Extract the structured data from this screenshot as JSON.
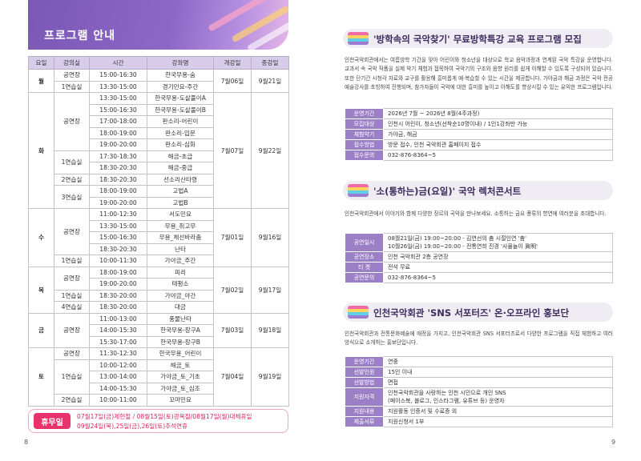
{
  "left": {
    "title": "프로그램 안내",
    "page_number": "8",
    "table": {
      "headers": [
        "요일",
        "강의실",
        "시간",
        "강좌명",
        "개강일",
        "종강일"
      ],
      "days": [
        {
          "day": "월",
          "start": "7월06일",
          "end": "9월21일",
          "rooms": [
            {
              "room": "공연장",
              "classes": [
                {
                  "time": "15:00-16:30",
                  "name": "한국무용-숨"
                }
              ]
            },
            {
              "room": "1연습실",
              "classes": [
                {
                  "time": "13:30-15:00",
                  "name": "경기민요-주간"
                }
              ]
            }
          ]
        },
        {
          "day": "화",
          "start": "7월07일",
          "end": "9월22일",
          "rooms": [
            {
              "room": "공연장",
              "classes": [
                {
                  "time": "13:30-15:00",
                  "name": "한국무용-도살풀이A"
                },
                {
                  "time": "15:00-16:30",
                  "name": "한국무용-도살풀이B"
                },
                {
                  "time": "17:00-18:00",
                  "name": "판소리-어린이"
                },
                {
                  "time": "18:00-19:00",
                  "name": "판소리-입문"
                },
                {
                  "time": "19:00-20:00",
                  "name": "판소리-심화"
                }
              ]
            },
            {
              "room": "1연습실",
              "classes": [
                {
                  "time": "17:30-18:30",
                  "name": "해금-초급"
                },
                {
                  "time": "18:30-20:30",
                  "name": "해금-중급"
                }
              ]
            },
            {
              "room": "2연습실",
              "classes": [
                {
                  "time": "18:30-20:30",
                  "name": "선소리산타령"
                }
              ]
            },
            {
              "room": "3연습실",
              "classes": [
                {
                  "time": "18:00-19:00",
                  "name": "고법A"
                },
                {
                  "time": "19:00-20:00",
                  "name": "고법B"
                }
              ]
            }
          ]
        },
        {
          "day": "수",
          "start": "7월01일",
          "end": "9월16일",
          "rooms": [
            {
              "room": "공연장",
              "classes": [
                {
                  "time": "11:00-12:30",
                  "name": "서도민요"
                },
                {
                  "time": "13:30-15:00",
                  "name": "무용_취고무"
                },
                {
                  "time": "15:00-16:30",
                  "name": "무용_체선바라춤"
                },
                {
                  "time": "18:30-20:30",
                  "name": "난타"
                }
              ]
            },
            {
              "room": "1연습실",
              "classes": [
                {
                  "time": "10:00-11:30",
                  "name": "가야금_주간"
                }
              ]
            }
          ]
        },
        {
          "day": "목",
          "start": "7월02일",
          "end": "9월17일",
          "rooms": [
            {
              "room": "공연장",
              "classes": [
                {
                  "time": "18:00-19:00",
                  "name": "피리"
                },
                {
                  "time": "19:00-20:00",
                  "name": "태평소"
                }
              ]
            },
            {
              "room": "1연습실",
              "classes": [
                {
                  "time": "18:30-20:00",
                  "name": "가야금_야간"
                }
              ]
            },
            {
              "room": "4연습실",
              "classes": [
                {
                  "time": "18:30-20:00",
                  "name": "대금"
                }
              ]
            }
          ]
        },
        {
          "day": "금",
          "start": "7월03일",
          "end": "9월18일",
          "rooms": [
            {
              "room": "공연장",
              "classes": [
                {
                  "time": "11:00-13:00",
                  "name": "풍물난타"
                },
                {
                  "time": "14:00-15:30",
                  "name": "한국무용-장구A"
                },
                {
                  "time": "15:30-17:00",
                  "name": "한국무용-장구B"
                }
              ]
            }
          ]
        },
        {
          "day": "토",
          "start": "7월04일",
          "end": "9월19일",
          "rooms": [
            {
              "room": "공연장",
              "classes": [
                {
                  "time": "11:30-12:30",
                  "name": "한국무용_어린이"
                }
              ]
            },
            {
              "room": "1연습실",
              "classes": [
                {
                  "time": "10:00-12:00",
                  "name": "해금_토"
                },
                {
                  "time": "13:00-14:00",
                  "name": "가야금_토_기초"
                },
                {
                  "time": "14:00-15:30",
                  "name": "가야금_토_심조"
                }
              ]
            },
            {
              "room": "2연습실",
              "classes": [
                {
                  "time": "10:00-11:00",
                  "name": "꼬마민요"
                }
              ]
            }
          ]
        }
      ]
    },
    "holiday": {
      "label": "휴무일",
      "lines": [
        "07월17일(금)제헌절 / 08월15일(토)광복절/08월17일(월)대체휴일",
        "09월24일(목),25일(금),26일(토)추석연휴"
      ]
    }
  },
  "right": {
    "page_number": "9",
    "sections": [
      {
        "title": "'방학속의 국악찾기' 무료방학특강 교육 프로그램 모집",
        "intro": "인천국악회관에서는 여름방학 기간을 맞아 어린이와 청소년을 대상으로 학교 음악과정과 연계된 국악 특강을 운영합니다. 교과서 속 국악 작품을 실제 악기 체험과 접목하여 국악기의 구조와 음향 원리를 쉽게 이해할 수 있도록 구성되어 있습니다. 또한 단기간 시청각 자료와 교구를 활용해 흥미롭게 예·복습할 수 있는 시간을 제공합니다. 가야금과 해금 과정은 국악 전공 예술강사를 초빙하여 진행되며, 참가자들이 국악에 대한 흥미를 높이고 이해도를 향상시킬 수 있는 유익한 프로그램입니다.",
        "rows": [
          {
            "label": "운영기간",
            "lines": [
              "2026년 7월 ~ 2026년 8월(4주과정)"
            ]
          },
          {
            "label": "모집대상",
            "lines": [
              "인천시 어린이, 청소년(선착순10명이내) / 1인1강좌만 가능"
            ]
          },
          {
            "label": "체험악기",
            "lines": [
              "가야금, 해금"
            ]
          },
          {
            "label": "접수방법",
            "lines": [
              "방문 접수, 인천 국악회관 홈페이지 접수"
            ]
          },
          {
            "label": "접수문의",
            "lines": [
              "032-876-8364~5"
            ]
          }
        ]
      },
      {
        "title": "'소(통하는)금(요일)' 국악 렉처콘서트",
        "intro": "인천국악회관에서 이야기와 함께 다양한 장르의 국악을 만나보세요. 소통하는 금요 풍류의 향연에 여러분을 초대합니다.",
        "rows": [
          {
            "label": "공연일시",
            "lines": [
              "08월21일(금) 19:00~20:00 - 김연선의 춤 시절인연 '춤'",
              "10월26일(금) 19:00~20:00 - 전통연희 진경 '사물놀이 眞明'"
            ]
          },
          {
            "label": "공연장소",
            "lines": [
              "인천 국악회관 2층 공연장"
            ]
          },
          {
            "label": "티 켓",
            "lines": [
              "전석 무료"
            ]
          },
          {
            "label": "공연문의",
            "lines": [
              "032-876-8364~5"
            ]
          }
        ]
      },
      {
        "title": "인천국악회관 'SNS 서포터즈' 온·오프라인 홍보단",
        "intro": "인천국악회관과 전통문화예술에 애정을 가지고, 인천국악회관 SNS 서포터즈로서 다양한 프로그램을 직접 체험하고 여러 방식으로 소개하는 홍보단입니다.",
        "rows": [
          {
            "label": "운영기간",
            "lines": [
              "연중"
            ]
          },
          {
            "label": "선발인원",
            "lines": [
              "15인 이내"
            ]
          },
          {
            "label": "선발방법",
            "lines": [
              "면접"
            ]
          },
          {
            "label": "지원자격",
            "lines": [
              "인천국악회관을 사랑하는 인천 시민으로 개인 SNS",
              "(페이스북, 블로그, 인스타그램, 유튜브 등) 운영자"
            ]
          },
          {
            "label": "지원내용",
            "lines": [
              "지원활동 인증서 및 수료증 외"
            ]
          },
          {
            "label": "제출서류",
            "lines": [
              "지원신청서 1부"
            ]
          }
        ]
      }
    ]
  }
}
